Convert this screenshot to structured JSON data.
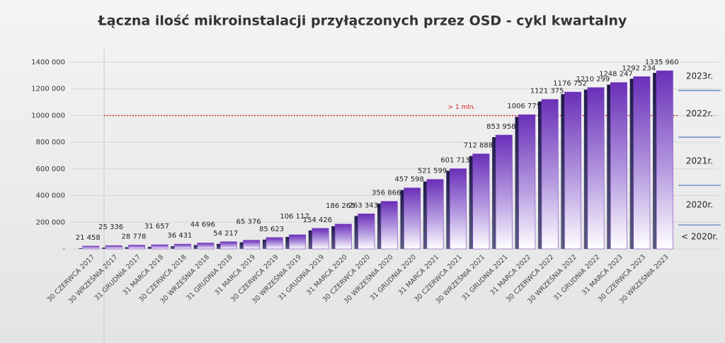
{
  "chart_data": {
    "type": "bar",
    "title": "Łączna ilość mikroinstalacji przyłączonych przez OSD - cykl kwartalny",
    "categories": [
      "30 CZERWCA 2017",
      "30 WRZEŚNIA 2017",
      "31 GRUDNIA 2017",
      "31 MARCA 2018",
      "30 CZERWCA 2018",
      "30 WRZEŚNIA 2018",
      "31 GRUDNIA 2018",
      "31 MARCA 2019",
      "30 CZERWCA 2019",
      "30 WRZEŚNIA 2019",
      "31 GRUDNIA 2019",
      "31 MARCA 2020",
      "30 CZERWCA 2020",
      "30 WRZEŚNIA 2020",
      "31 GRUDNIA 2020",
      "31 MARCA 2021",
      "30 CZERWCA 2021",
      "30 WRZEŚNIA 2021",
      "31 GRUDNIA 2021",
      "31 MARCA 2022",
      "30 CZERWCA 2022",
      "30 WRZEŚNIA 2022",
      "31 GRUDNIA 2022",
      "31 MARCA 2023",
      "30 CZERWCA 2023",
      "30 WRZEŚNIA 2023"
    ],
    "values": [
      21458,
      25336,
      28778,
      31657,
      36431,
      44696,
      54217,
      65376,
      85623,
      106117,
      154426,
      186265,
      263343,
      356866,
      457598,
      521599,
      601713,
      712888,
      853958,
      1006775,
      1121375,
      1176752,
      1210299,
      1248247,
      1292234,
      1335960
    ],
    "value_labels": [
      "21 458",
      "25 336",
      "28 778",
      "31 657",
      "36 431",
      "44 696",
      "54 217",
      "65 376",
      "85 623",
      "106 117",
      "154 426",
      "186 265",
      "263 343",
      "356 866",
      "457 598",
      "521 599",
      "601 713",
      "712 888",
      "853 958",
      "1006 775",
      "1121 375",
      "1176 752",
      "1210 299",
      "1248 247",
      "1292 234",
      "1335 960"
    ],
    "color": "#7b3fc4",
    "ylim": [
      0,
      1400000
    ],
    "yticks": [
      {
        "value": 0,
        "label": "-"
      },
      {
        "value": 200000,
        "label": "200 000"
      },
      {
        "value": 400000,
        "label": "400 000"
      },
      {
        "value": 600000,
        "label": "600 000"
      },
      {
        "value": 800000,
        "label": "800 000"
      },
      {
        "value": 1000000,
        "label": "1000 000"
      },
      {
        "value": 1200000,
        "label": "1200 000"
      },
      {
        "value": 1400000,
        "label": "1400 000"
      }
    ],
    "grid": true,
    "reference_line": {
      "value": 1000000,
      "label": "> 1 mln.",
      "color": "#e02020"
    },
    "year_bands": [
      {
        "label": "< 2020r.",
        "to": 180000
      },
      {
        "label": "2020r.",
        "to": 477000
      },
      {
        "label": "2021r.",
        "to": 838000
      },
      {
        "label": "2022r.",
        "to": 1188000
      },
      {
        "label": "2023r.",
        "to": 1400000
      }
    ]
  }
}
